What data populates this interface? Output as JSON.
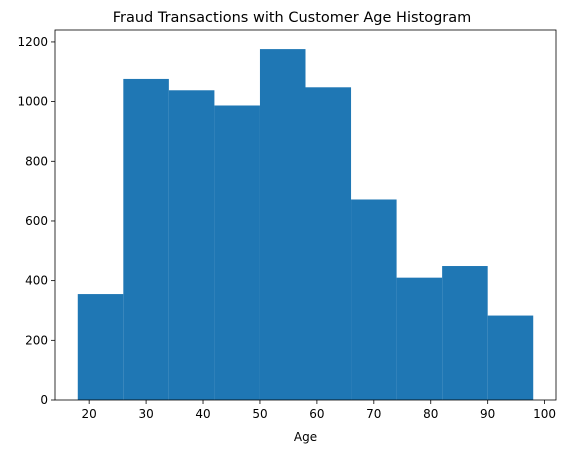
{
  "chart_data": {
    "type": "bar",
    "subtype": "histogram",
    "title": "Fraud Transactions with Customer Age Histogram",
    "xlabel": "Age",
    "ylabel": "",
    "bin_edges": [
      18,
      26,
      34,
      42,
      50,
      58,
      66,
      74,
      82,
      90,
      98
    ],
    "values": [
      355,
      1076,
      1038,
      987,
      1176,
      1048,
      672,
      410,
      449,
      283
    ],
    "xlim": [
      14,
      102
    ],
    "ylim": [
      0,
      1240
    ],
    "xticks": [
      20,
      30,
      40,
      50,
      60,
      70,
      80,
      90,
      100
    ],
    "yticks": [
      0,
      200,
      400,
      600,
      800,
      1000,
      1200
    ],
    "bar_color": "#1f77b4",
    "grid": false,
    "legend": "none"
  }
}
